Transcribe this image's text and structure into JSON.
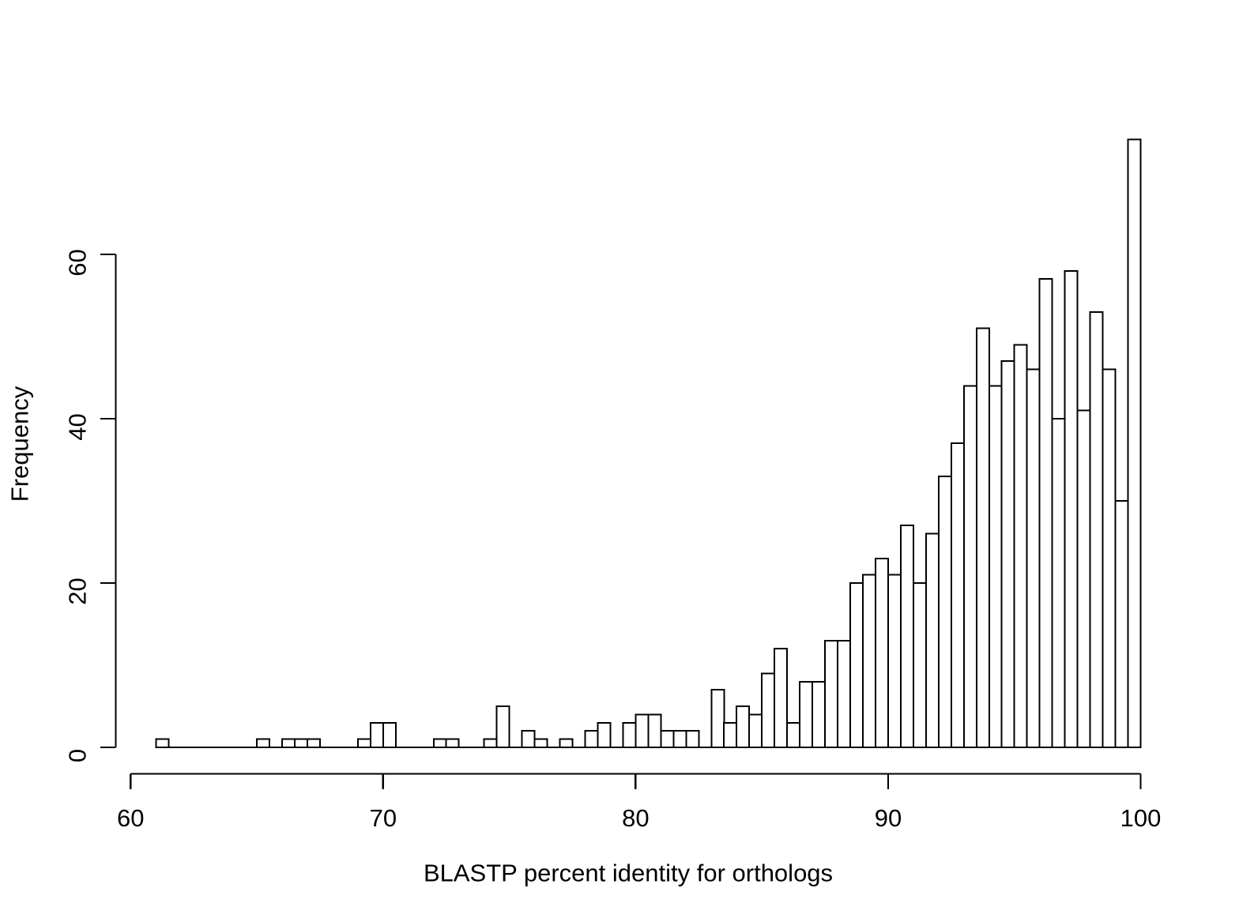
{
  "figure": {
    "background": "#ffffff",
    "line_color": "#000000"
  },
  "chart_data": {
    "type": "bar",
    "subtype": "histogram",
    "title": "",
    "xlabel": "BLASTP percent identity for orthologs",
    "ylabel": "Frequency",
    "xlim": [
      60,
      100
    ],
    "ylim": [
      0,
      74
    ],
    "x_ticks": [
      "60",
      "70",
      "80",
      "90",
      "100"
    ],
    "x_tick_values": [
      60,
      70,
      80,
      90,
      100
    ],
    "y_ticks": [
      "0",
      "20",
      "40",
      "60"
    ],
    "y_tick_values": [
      0,
      20,
      40,
      60
    ],
    "grid": false,
    "legend": false,
    "bar_fill": "#ffffff",
    "bar_stroke": "#000000",
    "bin_start": 61.0,
    "bin_width": 0.5,
    "counts": [
      1,
      0,
      0,
      0,
      0,
      0,
      0,
      0,
      1,
      0,
      1,
      1,
      1,
      0,
      0,
      0,
      1,
      3,
      3,
      0,
      0,
      0,
      1,
      1,
      0,
      0,
      1,
      5,
      0,
      2,
      1,
      0,
      1,
      0,
      2,
      3,
      0,
      3,
      4,
      4,
      2,
      2,
      2,
      0,
      7,
      3,
      5,
      4,
      9,
      12,
      3,
      8,
      8,
      13,
      13,
      20,
      21,
      23,
      21,
      27,
      20,
      26,
      33,
      37,
      44,
      51,
      44,
      47,
      49,
      46,
      57,
      40,
      58,
      41,
      53,
      46,
      30,
      74
    ]
  }
}
